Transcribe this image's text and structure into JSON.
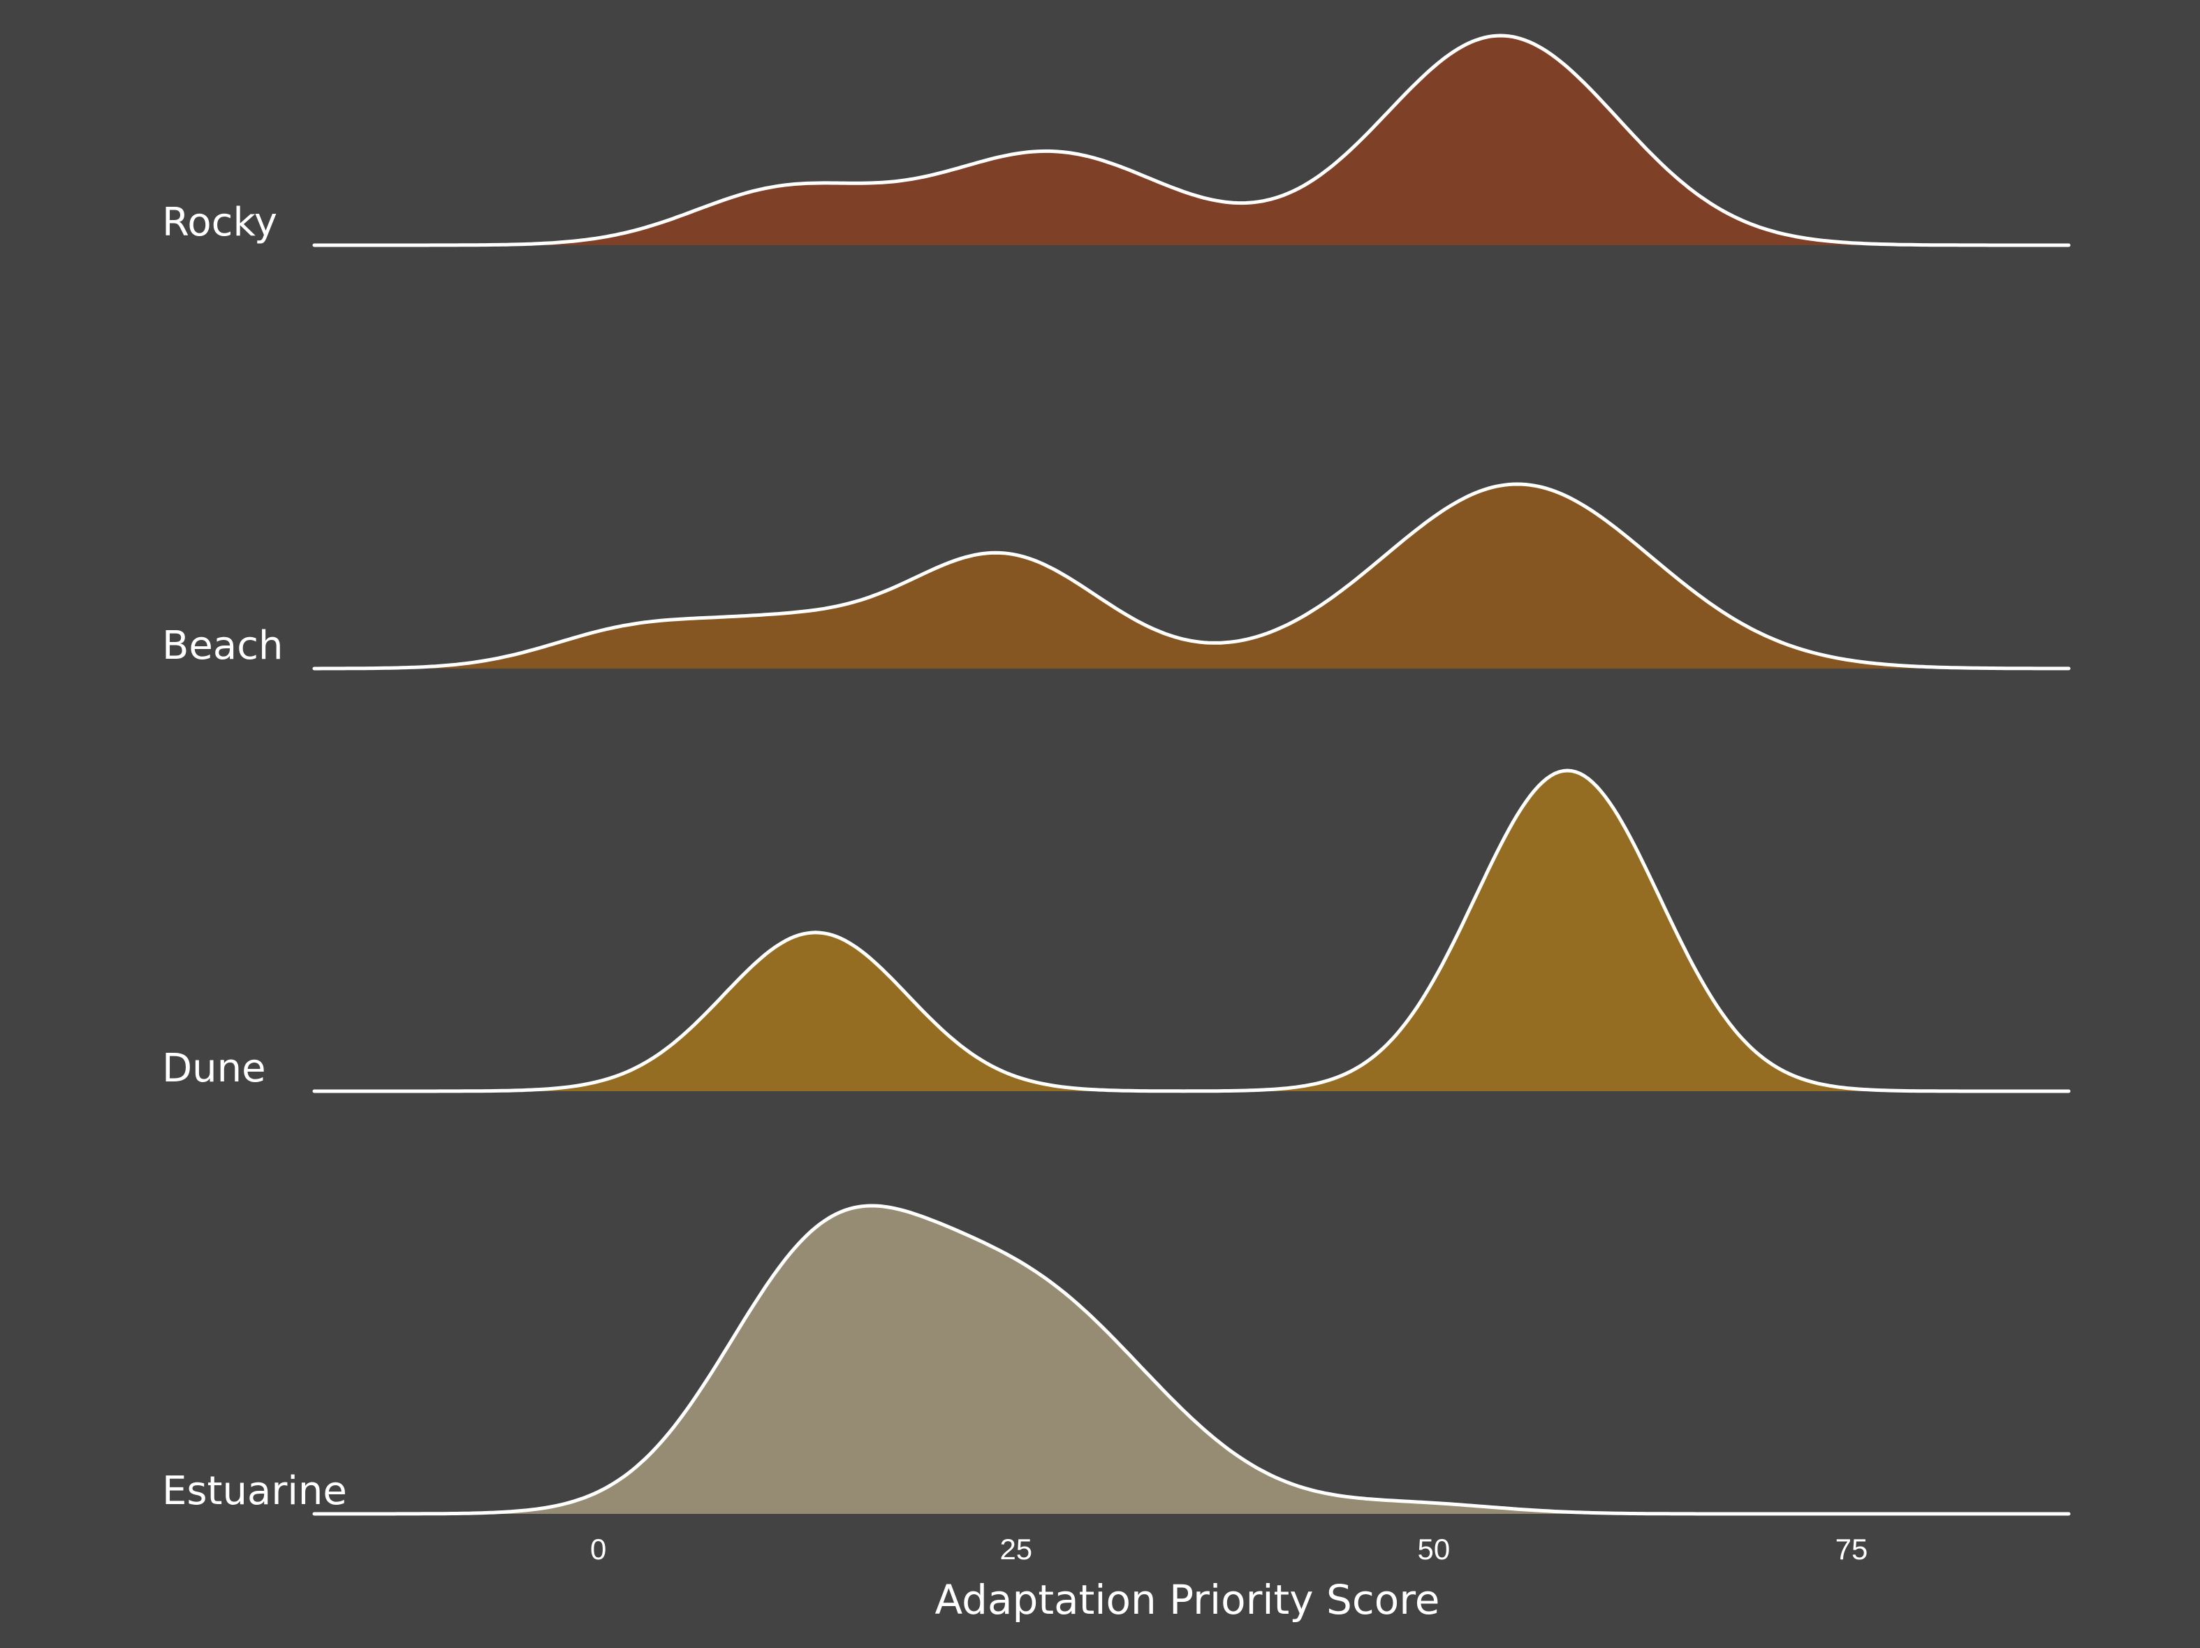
{
  "chart_data": {
    "type": "ridgeline",
    "title": "",
    "xlabel": "Adaptation Priority Score",
    "ylabel": "",
    "xlim": [
      -17,
      88
    ],
    "xticks": [
      0,
      25,
      50,
      75
    ],
    "grid": false,
    "legend": "none",
    "background": "#434343",
    "outline_color": "#ffffff",
    "series": [
      {
        "name": "Rocky",
        "color": "#7e4026",
        "peak_height": 1.0,
        "components": [
          {
            "mean": 11,
            "sd": 5.5,
            "weight": 0.25
          },
          {
            "mean": 27,
            "sd": 7,
            "weight": 0.44
          },
          {
            "mean": 54,
            "sd": 7,
            "weight": 0.99
          }
        ]
      },
      {
        "name": "Beach",
        "color": "#855622",
        "peak_height": 0.88,
        "components": [
          {
            "mean": 2,
            "sd": 5,
            "weight": 0.2
          },
          {
            "mean": 11,
            "sd": 5,
            "weight": 0.2
          },
          {
            "mean": 24,
            "sd": 6,
            "weight": 0.62
          },
          {
            "mean": 55,
            "sd": 8,
            "weight": 1.0
          }
        ]
      },
      {
        "name": "Dune",
        "color": "#956d22",
        "peak_height": 1.53,
        "components": [
          {
            "mean": 13,
            "sd": 5.5,
            "weight": 0.49
          },
          {
            "mean": 58,
            "sd": 5.5,
            "weight": 0.99
          }
        ]
      },
      {
        "name": "Estuarine",
        "color": "#958c73",
        "peak_height": 1.47,
        "components": [
          {
            "mean": 13,
            "sd": 6,
            "weight": 0.68
          },
          {
            "mean": 25,
            "sd": 8,
            "weight": 0.72
          },
          {
            "mean": 49,
            "sd": 5,
            "weight": 0.03
          }
        ]
      }
    ]
  }
}
